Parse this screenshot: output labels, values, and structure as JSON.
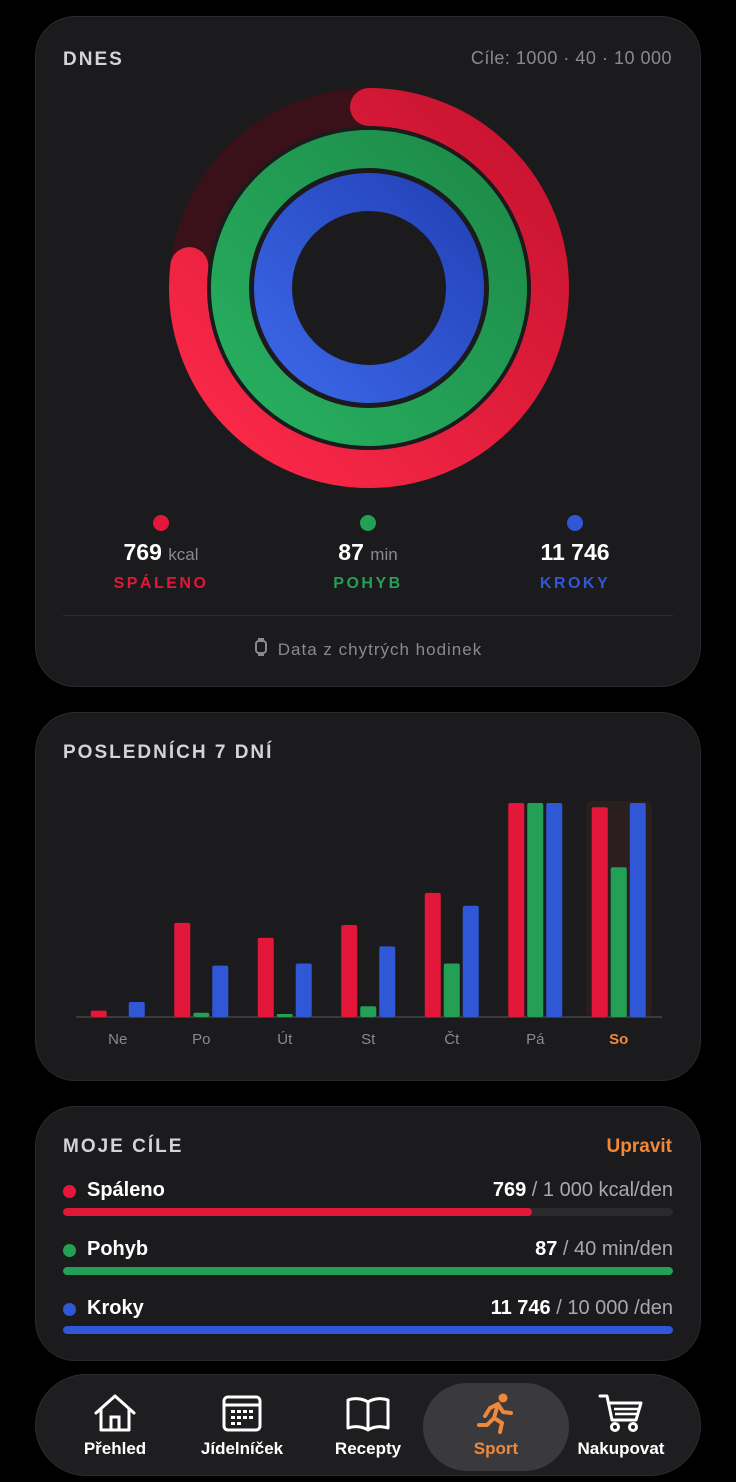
{
  "today": {
    "title": "DNES",
    "goals_summary": "Cíle: 1000 · 40 · 10 000",
    "rings": [
      {
        "name": "Spáleno",
        "progress": 0.769,
        "color": "#e3173a"
      },
      {
        "name": "Pohyb",
        "progress": 1.0,
        "color": "#23a055"
      },
      {
        "name": "Kroky",
        "progress": 1.0,
        "color": "#2f57d6"
      }
    ],
    "stats": [
      {
        "value": "769",
        "unit": "kcal",
        "label": "SPÁLENO",
        "color": "#e3173a"
      },
      {
        "value": "87",
        "unit": "min",
        "label": "POHYB",
        "color": "#23a055"
      },
      {
        "value": "11 746",
        "unit": "",
        "label": "KROKY",
        "color": "#2f57d6"
      }
    ],
    "source": "Data z chytrých hodinek",
    "source_icon": "watch-icon"
  },
  "week": {
    "title": "POSLEDNÍCH 7 DNÍ",
    "today_highlight": "So",
    "today_color": "#f0883a"
  },
  "chart_data": {
    "type": "bar",
    "categories": [
      "Ne",
      "Po",
      "Út",
      "St",
      "Čt",
      "Pá",
      "So"
    ],
    "series": [
      {
        "name": "Spáleno",
        "color": "#e3173a",
        "values": [
          0.03,
          0.44,
          0.37,
          0.43,
          0.58,
          1.0,
          0.98
        ]
      },
      {
        "name": "Pohyb",
        "color": "#23a055",
        "values": [
          0,
          0.02,
          0.005,
          0.05,
          0.25,
          1.0,
          0.7
        ]
      },
      {
        "name": "Kroky",
        "color": "#2f57d6",
        "values": [
          0.07,
          0.24,
          0.25,
          0.33,
          0.52,
          1.0,
          1.0
        ]
      }
    ],
    "ylim": [
      0,
      1
    ]
  },
  "goals": {
    "title": "MOJE CÍLE",
    "edit_label": "Upravit",
    "items": [
      {
        "name": "Spáleno",
        "value": "769",
        "target": " / 1 000 kcal/den",
        "progress": 0.769,
        "color": "#e3173a"
      },
      {
        "name": "Pohyb",
        "value": "87",
        "target": " / 40 min/den",
        "progress": 1.0,
        "color": "#23a055"
      },
      {
        "name": "Kroky",
        "value": "11 746",
        "target": " / 10 000 /den",
        "progress": 1.0,
        "color": "#2f57d6"
      }
    ]
  },
  "nav": {
    "items": [
      {
        "label": "Přehled",
        "icon": "home-icon"
      },
      {
        "label": "Jídelníček",
        "icon": "calendar-icon"
      },
      {
        "label": "Recepty",
        "icon": "book-icon"
      },
      {
        "label": "Sport",
        "icon": "running-icon",
        "active": true
      },
      {
        "label": "Nakupovat",
        "icon": "cart-icon"
      }
    ]
  }
}
